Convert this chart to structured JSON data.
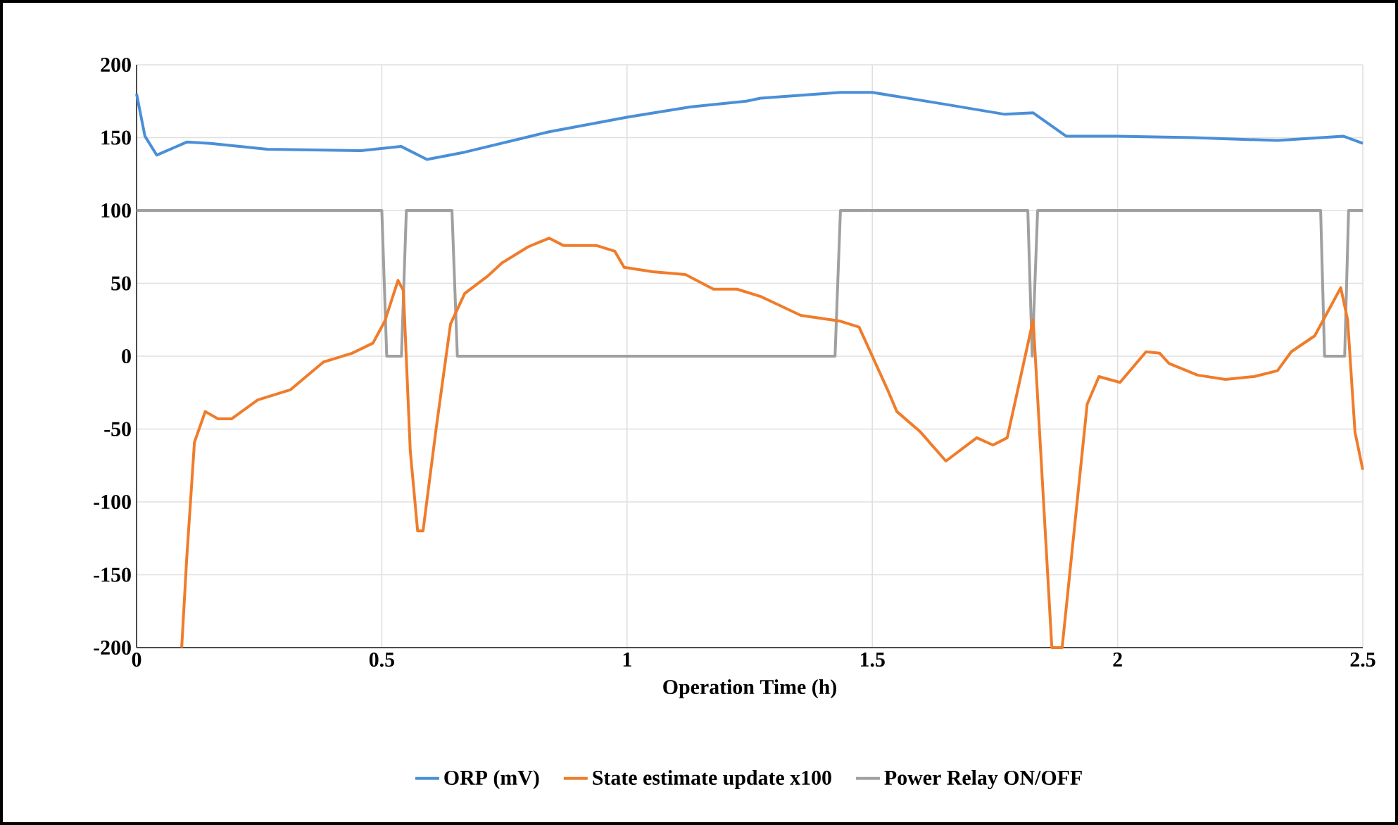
{
  "chart_data": {
    "type": "line",
    "xlabel": "Operation Time (h)",
    "xlim": [
      0,
      2.5
    ],
    "xticks": [
      0,
      0.5,
      1,
      1.5,
      2,
      2.5
    ],
    "ylim": [
      -200,
      200
    ],
    "yticks": [
      -200,
      -150,
      -100,
      -50,
      0,
      50,
      100,
      150,
      200
    ],
    "grid": true,
    "legend": "bottom",
    "marker": "none",
    "line_style": "solid",
    "series": [
      {
        "name": "ORP (mV)",
        "color": "#4a8fd8",
        "x": [
          0,
          0.017,
          0.041,
          0.103,
          0.151,
          0.266,
          0.458,
          0.539,
          0.592,
          0.669,
          0.841,
          1.0,
          1.128,
          1.243,
          1.272,
          1.435,
          1.5,
          1.646,
          1.77,
          1.828,
          1.895,
          2.0,
          2.153,
          2.326,
          2.46,
          2.5
        ],
        "values": [
          180,
          151,
          138,
          147,
          146,
          142,
          141,
          144,
          135,
          140,
          154,
          164,
          171,
          175,
          177,
          181,
          181,
          173,
          166,
          167,
          151,
          151,
          150,
          148,
          151,
          146
        ]
      },
      {
        "name": "State estimate update x100",
        "color": "#f07c2a",
        "x": [
          0.092,
          0.102,
          0.118,
          0.14,
          0.166,
          0.194,
          0.247,
          0.314,
          0.381,
          0.439,
          0.482,
          0.506,
          0.533,
          0.544,
          0.558,
          0.573,
          0.584,
          0.611,
          0.64,
          0.669,
          0.716,
          0.745,
          0.798,
          0.841,
          0.87,
          0.937,
          0.975,
          0.994,
          1.052,
          1.119,
          1.176,
          1.224,
          1.272,
          1.291,
          1.354,
          1.435,
          1.473,
          1.531,
          1.55,
          1.598,
          1.65,
          1.713,
          1.746,
          1.775,
          1.828,
          1.866,
          1.887,
          1.938,
          1.962,
          2.005,
          2.058,
          2.086,
          2.105,
          2.163,
          2.22,
          2.278,
          2.326,
          2.354,
          2.402,
          2.455,
          2.469,
          2.484,
          2.5
        ],
        "values": [
          -200,
          -140,
          -59,
          -38,
          -43,
          -43,
          -30,
          -23,
          -4,
          2,
          9,
          24,
          52,
          45,
          -65,
          -120,
          -120,
          -49,
          22,
          43,
          55,
          64,
          75,
          81,
          76,
          76,
          72,
          61,
          58,
          56,
          46,
          46,
          41,
          38,
          28,
          24,
          20,
          -23,
          -38,
          -52,
          -72,
          -56,
          -61,
          -56,
          25,
          -200,
          -200,
          -33,
          -14,
          -18,
          3,
          2,
          -5,
          -13,
          -16,
          -14,
          -10,
          3,
          14,
          47,
          25,
          -52,
          -78
        ]
      },
      {
        "name": "Power Relay ON/OFF",
        "color": "#a0a0a0",
        "x": [
          0,
          0.5,
          0.51,
          0.54,
          0.55,
          0.643,
          0.654,
          1.424,
          1.435,
          1.817,
          1.826,
          1.837,
          2.414,
          2.422,
          2.463,
          2.471,
          2.5
        ],
        "values": [
          100,
          100,
          0,
          0,
          100,
          100,
          0,
          0,
          100,
          100,
          0,
          100,
          100,
          0,
          0,
          100,
          100
        ]
      }
    ]
  }
}
